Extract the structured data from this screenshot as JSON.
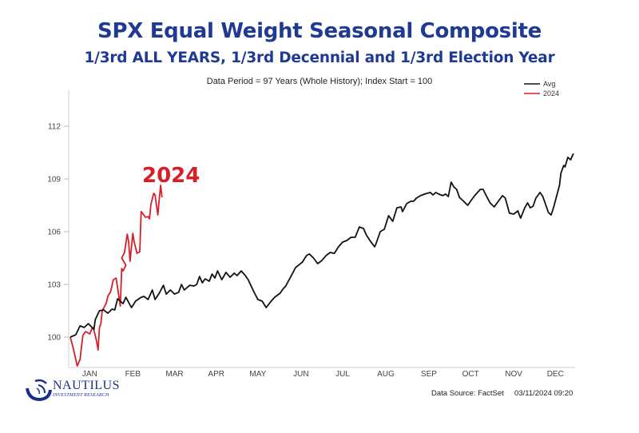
{
  "chart_data": {
    "type": "line",
    "title": "SPX Equal Weight Seasonal Composite",
    "subtitle": "1/3rd ALL YEARS, 1/3rd Decennial and 1/3rd Election Year",
    "note": "Data Period = 97 Years (Whole History); Index Start = 100",
    "xlabel": "",
    "ylabel": "",
    "x_unit": "day of year",
    "xlim": [
      0,
      365
    ],
    "ylim": [
      98.3,
      114.5
    ],
    "y_ticks": [
      100,
      103,
      106,
      109,
      112
    ],
    "x_tick_labels": [
      "JAN",
      "FEB",
      "MAR",
      "APR",
      "MAY",
      "JUN",
      "JUL",
      "AUG",
      "SEP",
      "OCT",
      "NOV",
      "DEC"
    ],
    "x_tick_days": [
      14,
      45,
      75,
      105,
      135,
      166,
      196,
      227,
      258,
      288,
      319,
      349
    ],
    "grid": false,
    "legend_position": "top-right",
    "annotation": "2024",
    "series": [
      {
        "name": "Avg",
        "color": "#111111",
        "points": [
          [
            0,
            100.0
          ],
          [
            4,
            100.14
          ],
          [
            7,
            100.64
          ],
          [
            10,
            100.55
          ],
          [
            13,
            100.77
          ],
          [
            17,
            100.45
          ],
          [
            18,
            101.0
          ],
          [
            21,
            101.5
          ],
          [
            24,
            101.55
          ],
          [
            27,
            101.36
          ],
          [
            30,
            101.59
          ],
          [
            32,
            101.55
          ],
          [
            34,
            102.18
          ],
          [
            38,
            101.91
          ],
          [
            40,
            102.27
          ],
          [
            44,
            101.68
          ],
          [
            47,
            102.05
          ],
          [
            51,
            102.27
          ],
          [
            53,
            102.32
          ],
          [
            56,
            102.14
          ],
          [
            59,
            102.68
          ],
          [
            61,
            102.14
          ],
          [
            64,
            102.5
          ],
          [
            67,
            102.95
          ],
          [
            69,
            102.45
          ],
          [
            72,
            102.68
          ],
          [
            75,
            102.45
          ],
          [
            78,
            102.55
          ],
          [
            80,
            103.0
          ],
          [
            82,
            102.68
          ],
          [
            86,
            102.95
          ],
          [
            89,
            102.91
          ],
          [
            91,
            103.0
          ],
          [
            93,
            103.45
          ],
          [
            95,
            103.09
          ],
          [
            97,
            103.32
          ],
          [
            100,
            103.18
          ],
          [
            102,
            103.59
          ],
          [
            104,
            103.36
          ],
          [
            106,
            103.77
          ],
          [
            109,
            103.27
          ],
          [
            112,
            103.68
          ],
          [
            115,
            103.41
          ],
          [
            118,
            103.64
          ],
          [
            120,
            103.5
          ],
          [
            123,
            103.77
          ],
          [
            126,
            103.5
          ],
          [
            128,
            103.27
          ],
          [
            132,
            102.59
          ],
          [
            135,
            102.14
          ],
          [
            138,
            102.05
          ],
          [
            141,
            101.68
          ],
          [
            144,
            102.0
          ],
          [
            147,
            102.27
          ],
          [
            151,
            102.5
          ],
          [
            153,
            102.73
          ],
          [
            155,
            102.91
          ],
          [
            160,
            103.64
          ],
          [
            162,
            103.95
          ],
          [
            167,
            104.27
          ],
          [
            170,
            104.64
          ],
          [
            172,
            104.73
          ],
          [
            175,
            104.5
          ],
          [
            178,
            104.18
          ],
          [
            181,
            104.36
          ],
          [
            184,
            104.64
          ],
          [
            187,
            104.82
          ],
          [
            190,
            104.77
          ],
          [
            193,
            105.14
          ],
          [
            196,
            105.41
          ],
          [
            199,
            105.5
          ],
          [
            202,
            105.68
          ],
          [
            205,
            105.68
          ],
          [
            208,
            106.27
          ],
          [
            211,
            106.18
          ],
          [
            213,
            105.82
          ],
          [
            216,
            105.45
          ],
          [
            219,
            105.14
          ],
          [
            220,
            105.32
          ],
          [
            223,
            106.0
          ],
          [
            226,
            106.14
          ],
          [
            229,
            106.91
          ],
          [
            232,
            106.59
          ],
          [
            235,
            107.36
          ],
          [
            238,
            107.41
          ],
          [
            239,
            107.14
          ],
          [
            242,
            107.59
          ],
          [
            245,
            107.73
          ],
          [
            247,
            107.73
          ],
          [
            249,
            107.91
          ],
          [
            252,
            108.05
          ],
          [
            255,
            108.14
          ],
          [
            259,
            108.23
          ],
          [
            261,
            108.09
          ],
          [
            263,
            108.23
          ],
          [
            265,
            108.14
          ],
          [
            268,
            108.05
          ],
          [
            270,
            108.14
          ],
          [
            272,
            108.0
          ],
          [
            274,
            108.82
          ],
          [
            276,
            108.55
          ],
          [
            278,
            108.41
          ],
          [
            280,
            107.95
          ],
          [
            283,
            107.73
          ],
          [
            286,
            107.5
          ],
          [
            288,
            107.73
          ],
          [
            291,
            108.05
          ],
          [
            295,
            108.41
          ],
          [
            297,
            108.41
          ],
          [
            299,
            108.09
          ],
          [
            302,
            107.64
          ],
          [
            305,
            107.41
          ],
          [
            308,
            107.73
          ],
          [
            311,
            108.05
          ],
          [
            313,
            107.91
          ],
          [
            316,
            107.05
          ],
          [
            319,
            107.0
          ],
          [
            322,
            107.18
          ],
          [
            324,
            106.77
          ],
          [
            327,
            107.36
          ],
          [
            329,
            107.64
          ],
          [
            331,
            107.36
          ],
          [
            333,
            107.45
          ],
          [
            335,
            107.91
          ],
          [
            338,
            108.23
          ],
          [
            340,
            108.0
          ],
          [
            342,
            107.55
          ],
          [
            344,
            107.09
          ],
          [
            346,
            106.95
          ],
          [
            348,
            107.45
          ],
          [
            350,
            108.05
          ],
          [
            352,
            108.64
          ],
          [
            353,
            109.32
          ],
          [
            355,
            109.77
          ],
          [
            356,
            109.68
          ],
          [
            358,
            110.23
          ],
          [
            360,
            110.09
          ],
          [
            362,
            110.45
          ]
        ]
      },
      {
        "name": "2024",
        "color": "#d71f2a",
        "points": [
          [
            0,
            100.0
          ],
          [
            2,
            99.41
          ],
          [
            5,
            98.36
          ],
          [
            7,
            98.73
          ],
          [
            9,
            100.09
          ],
          [
            11,
            100.32
          ],
          [
            14,
            100.18
          ],
          [
            16,
            100.55
          ],
          [
            17,
            100.41
          ],
          [
            19,
            99.73
          ],
          [
            20,
            99.27
          ],
          [
            21,
            100.55
          ],
          [
            22,
            100.77
          ],
          [
            23,
            101.5
          ],
          [
            26,
            101.95
          ],
          [
            27,
            102.32
          ],
          [
            29,
            102.59
          ],
          [
            31,
            103.27
          ],
          [
            33,
            103.36
          ],
          [
            34,
            102.82
          ],
          [
            36,
            101.77
          ],
          [
            37,
            103.91
          ],
          [
            38,
            103.77
          ],
          [
            40,
            104.09
          ],
          [
            37,
            104.5
          ],
          [
            39,
            104.82
          ],
          [
            41,
            105.86
          ],
          [
            42,
            105.41
          ],
          [
            43,
            104.32
          ],
          [
            45,
            105.91
          ],
          [
            46,
            105.41
          ],
          [
            48,
            104.77
          ],
          [
            50,
            104.86
          ],
          [
            51,
            107.14
          ],
          [
            52,
            107.05
          ],
          [
            54,
            106.82
          ],
          [
            56,
            106.86
          ],
          [
            57,
            106.73
          ],
          [
            58,
            107.55
          ],
          [
            60,
            108.18
          ],
          [
            61,
            108.09
          ],
          [
            63,
            106.95
          ],
          [
            64,
            107.86
          ],
          [
            65,
            108.64
          ],
          [
            66,
            107.95
          ]
        ]
      }
    ]
  },
  "legend": {
    "items": [
      {
        "label": "Avg",
        "color": "#111111"
      },
      {
        "label": "2024",
        "color": "#d71f2a"
      }
    ]
  },
  "footer": {
    "source": "Data Source: FactSet",
    "timestamp": "03/11/2024 09:20"
  },
  "logo": {
    "brand": "NAUTILUS",
    "tagline": "INVESTMENT RESEARCH"
  }
}
